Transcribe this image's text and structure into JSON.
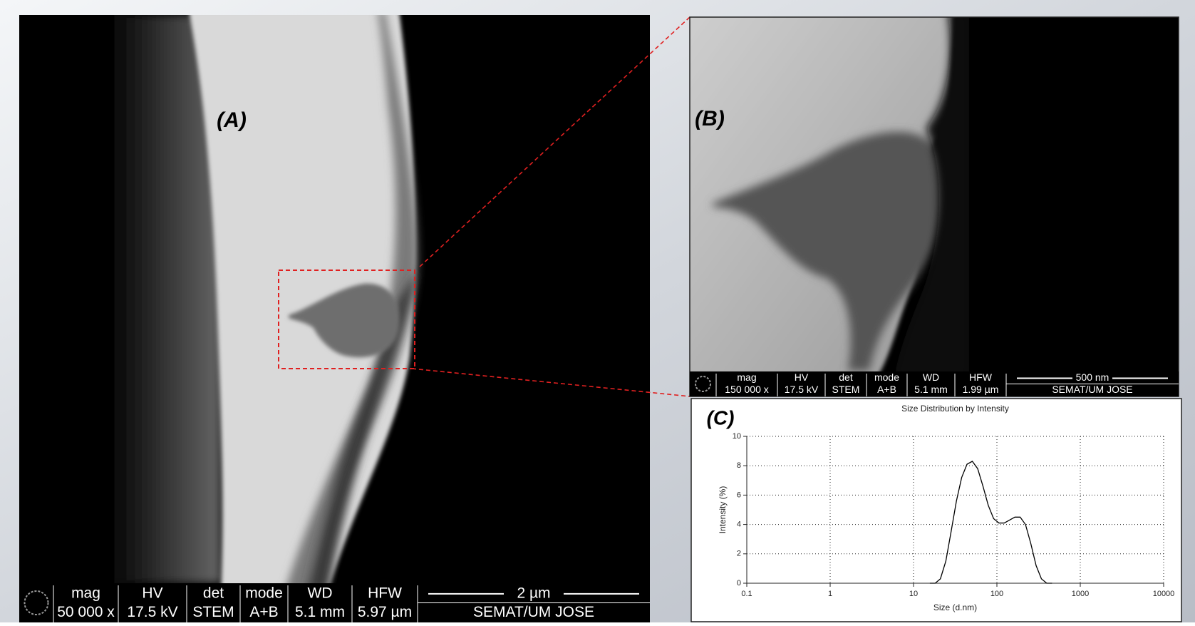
{
  "panels": [
    {
      "label": "(A)",
      "info": {
        "headers": [
          "mag",
          "HV",
          "det",
          "mode",
          "WD",
          "HFW"
        ],
        "values": [
          "50 000 x",
          "17.5 kV",
          "STEM",
          "A+B",
          "5.1 mm",
          "5.97 µm"
        ],
        "scale": "2 µm",
        "credit": "SEMAT/UM JOSE"
      }
    },
    {
      "label": "(B)",
      "info": {
        "headers": [
          "mag",
          "HV",
          "det",
          "mode",
          "WD",
          "HFW"
        ],
        "values": [
          "150 000 x",
          "17.5 kV",
          "STEM",
          "A+B",
          "5.1 mm",
          "1.99 µm"
        ],
        "scale": "500 nm",
        "credit": "SEMAT/UM JOSE"
      }
    },
    {
      "label": "(C)"
    }
  ],
  "chart_data": {
    "type": "line",
    "title": "Size Distribution by Intensity",
    "xlabel": "Size (d.nm)",
    "ylabel": "Intensity (%)",
    "x": [
      15.7,
      18.2,
      21.0,
      24.4,
      28.2,
      32.7,
      37.8,
      43.8,
      50.7,
      58.8,
      68.1,
      78.8,
      91.3,
      105.7,
      122.4,
      141.8,
      164.2,
      190.1,
      220.2,
      255.0,
      295.3,
      342.0,
      396.1,
      458.7
    ],
    "values": [
      0,
      0,
      0.3,
      1.5,
      3.5,
      5.6,
      7.2,
      8.1,
      8.3,
      7.8,
      6.6,
      5.3,
      4.4,
      4.1,
      4.1,
      4.3,
      4.5,
      4.5,
      4.0,
      2.7,
      1.2,
      0.3,
      0,
      0
    ],
    "color": "#000000",
    "xscale": "log",
    "grid": true,
    "xlim": [
      0.1,
      10000
    ],
    "xticks": [
      0.1,
      1,
      10,
      100,
      1000,
      10000
    ],
    "ylim": [
      0,
      10
    ],
    "yticks": [
      0,
      2,
      4,
      6,
      8,
      10
    ]
  }
}
